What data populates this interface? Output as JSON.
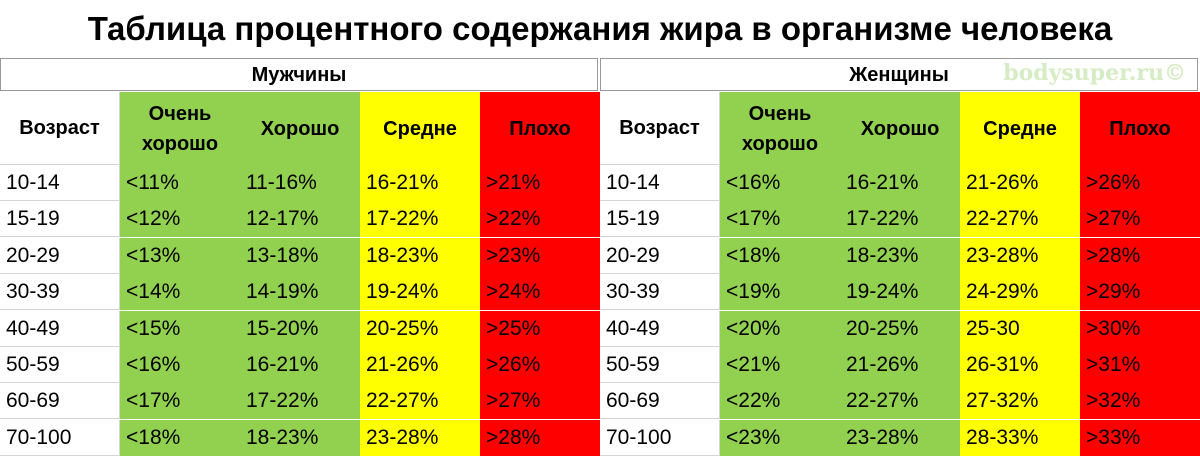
{
  "title": "Таблица процентного содержания жира в организме человека",
  "watermark": "bodysuper.ru©",
  "sections": [
    {
      "name": "Мужчины",
      "headers": [
        "Возраст",
        "Очень хорошо",
        "Хорошо",
        "Средне",
        "Плохо"
      ],
      "rows": [
        [
          "10-14",
          "<11%",
          "11-16%",
          "16-21%",
          ">21%"
        ],
        [
          "15-19",
          "<12%",
          "12-17%",
          "17-22%",
          ">22%"
        ],
        [
          "20-29",
          "<13%",
          "13-18%",
          "18-23%",
          ">23%"
        ],
        [
          "30-39",
          "<14%",
          "14-19%",
          "19-24%",
          ">24%"
        ],
        [
          "40-49",
          "<15%",
          "15-20%",
          "20-25%",
          ">25%"
        ],
        [
          "50-59",
          "<16%",
          "16-21%",
          "21-26%",
          ">26%"
        ],
        [
          "60-69",
          "<17%",
          "17-22%",
          "22-27%",
          ">27%"
        ],
        [
          "70-100",
          "<18%",
          "18-23%",
          "23-28%",
          ">28%"
        ]
      ]
    },
    {
      "name": "Женщины",
      "headers": [
        "Возраст",
        "Очень хорошо",
        "Хорошо",
        "Средне",
        "Плохо"
      ],
      "rows": [
        [
          "10-14",
          "<16%",
          "16-21%",
          "21-26%",
          ">26%"
        ],
        [
          "15-19",
          "<17%",
          "17-22%",
          "22-27%",
          ">27%"
        ],
        [
          "20-29",
          "<18%",
          "18-23%",
          "23-28%",
          ">28%"
        ],
        [
          "30-39",
          "<19%",
          "19-24%",
          "24-29%",
          ">29%"
        ],
        [
          "40-49",
          "<20%",
          "20-25%",
          "25-30",
          ">30%"
        ],
        [
          "50-59",
          "<21%",
          "21-26%",
          "26-31%",
          ">31%"
        ],
        [
          "60-69",
          "<22%",
          "22-27%",
          "27-32%",
          ">32%"
        ],
        [
          "70-100",
          "<23%",
          "23-28%",
          "28-33%",
          ">33%"
        ]
      ]
    }
  ]
}
